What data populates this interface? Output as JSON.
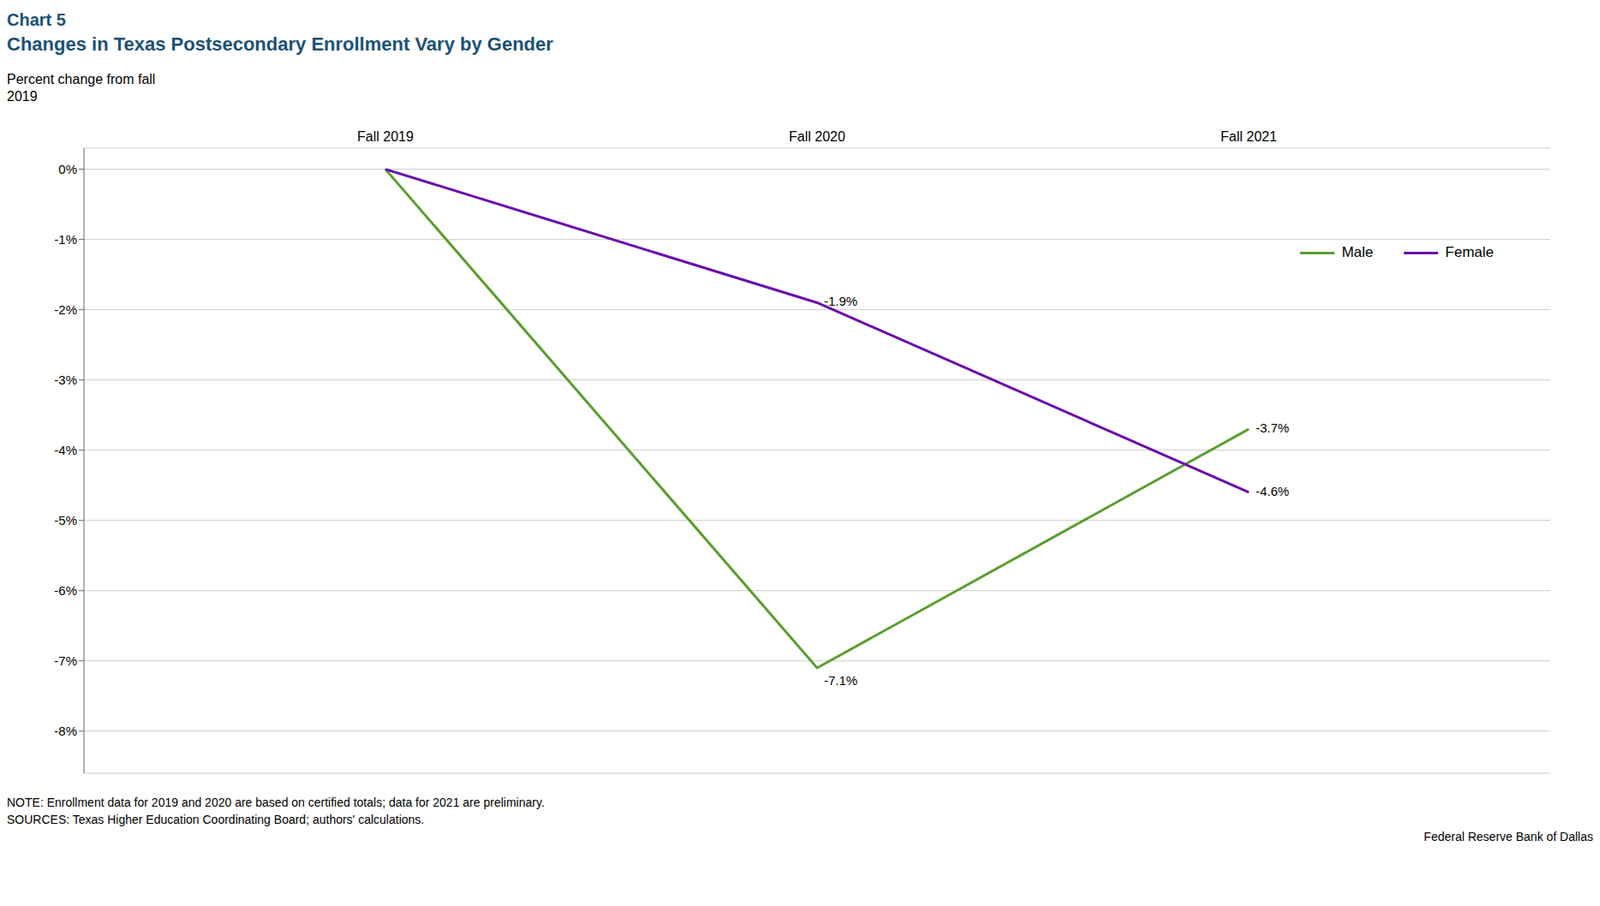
{
  "chart_data": {
    "type": "line",
    "subtitle": "Chart 5",
    "title": "Changes in Texas Postsecondary Enrollment Vary by Gender",
    "y_label": [
      "Percent change from fall",
      "2019"
    ],
    "categories": [
      "Fall 2019",
      "Fall 2020",
      "Fall 2021"
    ],
    "series": [
      {
        "name": "Male",
        "color": "#5a9e2f",
        "values": [
          0.0,
          -7.1,
          -3.7
        ],
        "value_labels": [
          null,
          "-7.1%",
          "-3.7%"
        ]
      },
      {
        "name": "Female",
        "color": "#6a0dad",
        "values": [
          0.0,
          -1.9,
          -4.6
        ],
        "value_labels": [
          null,
          "-1.9%",
          "-4.6%"
        ]
      }
    ],
    "ylim": [
      -8.6,
      0.3
    ],
    "yticks": [
      {
        "value": 0,
        "label": "0%"
      },
      {
        "value": -1,
        "label": "-1%"
      },
      {
        "value": -2,
        "label": "-2%"
      },
      {
        "value": -3,
        "label": "-3%"
      },
      {
        "value": -4,
        "label": "-4%"
      },
      {
        "value": -5,
        "label": "-5%"
      },
      {
        "value": -6,
        "label": "-6%"
      },
      {
        "value": -7,
        "label": "-7%"
      },
      {
        "value": -8,
        "label": "-8%"
      }
    ],
    "grid": true,
    "legend": "upper right",
    "notes": [
      "NOTE: Enrollment data for 2019 and 2020 are based on certified totals; data for 2021 are preliminary.",
      "SOURCES: Texas Higher Education Coordinating Board; authors' calculations."
    ],
    "source": "Federal Reserve Bank of Dallas"
  }
}
